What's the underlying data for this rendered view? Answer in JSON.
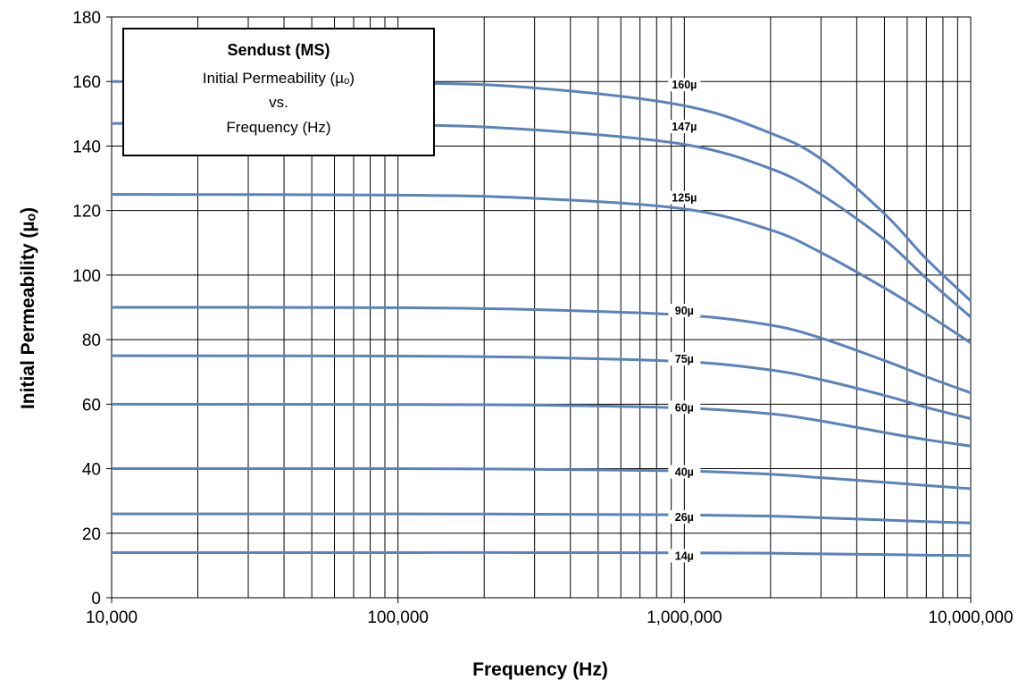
{
  "chart_data": {
    "type": "line",
    "xlabel": "Frequency (Hz)",
    "ylabel": "Initial Permeability (µₒ)",
    "xscale": "log",
    "xlim": [
      10000,
      10000000
    ],
    "ylim": [
      0,
      180
    ],
    "grid": true,
    "x_ticks": [
      "10,000",
      "100,000",
      "1,000,000",
      "10,000,000"
    ],
    "y_ticks": [
      "0",
      "20",
      "40",
      "60",
      "80",
      "100",
      "120",
      "140",
      "160",
      "180"
    ],
    "x": [
      10000,
      100000,
      300000,
      1000000,
      2000000,
      3000000,
      5000000,
      7000000,
      10000000
    ],
    "series": [
      {
        "name": "160µ",
        "values": [
          160,
          159.6,
          158,
          152.5,
          144,
          136,
          119,
          105,
          92
        ]
      },
      {
        "name": "147µ",
        "values": [
          147,
          146.6,
          145,
          140.5,
          133,
          125,
          111,
          99,
          87
        ]
      },
      {
        "name": "125µ",
        "values": [
          125,
          124.8,
          123.8,
          120.5,
          114,
          107,
          96,
          88,
          79
        ]
      },
      {
        "name": "90µ",
        "values": [
          90,
          89.9,
          89.3,
          87.6,
          84.5,
          80.5,
          73.5,
          68.5,
          63.5
        ]
      },
      {
        "name": "75µ",
        "values": [
          75,
          74.9,
          74.5,
          73.2,
          70.6,
          67.6,
          62.7,
          59,
          55.5
        ]
      },
      {
        "name": "60µ",
        "values": [
          60,
          59.9,
          59.7,
          58.8,
          57,
          54.8,
          51.2,
          49,
          47
        ]
      },
      {
        "name": "40µ",
        "values": [
          40,
          40,
          39.8,
          39.3,
          38.3,
          37.2,
          35.8,
          34.8,
          33.8
        ]
      },
      {
        "name": "26µ",
        "values": [
          26,
          26,
          25.9,
          25.7,
          25.3,
          24.8,
          24.1,
          23.6,
          23.2
        ]
      },
      {
        "name": "14µ",
        "values": [
          14,
          14,
          14,
          13.9,
          13.8,
          13.6,
          13.4,
          13.2,
          13.1
        ]
      }
    ],
    "label_x": 1000000,
    "label_y": [
      160,
      147,
      125,
      90,
      75,
      60,
      40,
      26,
      14
    ],
    "legend": {
      "title": "Sendust (MS)",
      "line1": "Initial Permeability (µₒ)",
      "line2": "vs.",
      "line3": "Frequency (Hz)",
      "placement": "top-left"
    },
    "colors": {
      "series": "#5b82ba",
      "grid": "#000000"
    }
  }
}
